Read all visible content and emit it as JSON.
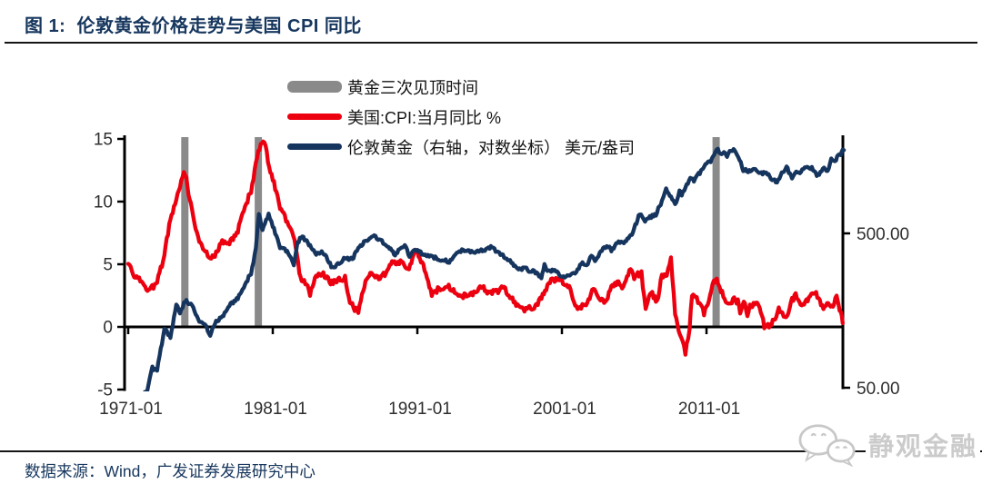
{
  "header": {
    "title": "图 1:  伦敦黄金价格走势与美国 CPI 同比"
  },
  "footer": {
    "source": "数据来源：Wind，广发证券发展研究中心",
    "watermark": "静观金融"
  },
  "chart_data": {
    "type": "line",
    "title": "伦敦黄金价格走势与美国 CPI 同比",
    "grid": false,
    "legend_position": "top-center",
    "legend": [
      {
        "label": "黄金三次见顶时间",
        "swatch": "bar",
        "color": "#8a8a8a"
      },
      {
        "label": "美国:CPI:当月同比 %",
        "swatch": "line",
        "color": "#ec000f"
      },
      {
        "label": "伦敦黄金（右轴，对数坐标） 美元/盎司",
        "swatch": "line",
        "color": "#16355e"
      }
    ],
    "x_axis": {
      "ticks": [
        {
          "year": 1971,
          "label": "1971-01"
        },
        {
          "year": 1981,
          "label": "1981-01"
        },
        {
          "year": 1991,
          "label": "1991-01"
        },
        {
          "year": 2001,
          "label": "2001-01"
        },
        {
          "year": 2011,
          "label": "2011-01"
        }
      ],
      "range_years": [
        1971.0,
        2020.5
      ]
    },
    "left_axis": {
      "name": "美国CPI当月同比 %",
      "range": [
        -5,
        15
      ],
      "ticks": [
        {
          "value": 15,
          "label": "15"
        },
        {
          "value": 10,
          "label": "10"
        },
        {
          "value": 5,
          "label": "5"
        },
        {
          "value": 0,
          "label": "0"
        },
        {
          "value": -5,
          "label": "-5"
        }
      ]
    },
    "right_axis": {
      "name": "伦敦黄金 美元/盎司",
      "scale": "log",
      "ticks": [
        {
          "value": 500,
          "label": "500.00"
        },
        {
          "value": 50,
          "label": "50.00"
        }
      ]
    },
    "highlight_bars": {
      "name": "黄金三次见顶时间",
      "color": "#8a8a8a",
      "dates": [
        "1974-12",
        "1980-01",
        "2011-09"
      ]
    },
    "series": [
      {
        "name": "美国:CPI:当月同比 %",
        "axis": "left",
        "unit": "%",
        "color": "#ec000f",
        "points": [
          [
            1971.0,
            5.2
          ],
          [
            1971.33,
            4.2
          ],
          [
            1971.67,
            4.1
          ],
          [
            1972.0,
            3.3
          ],
          [
            1972.5,
            2.9
          ],
          [
            1973.0,
            3.6
          ],
          [
            1973.5,
            5.7
          ],
          [
            1973.92,
            8.7
          ],
          [
            1974.33,
            10.1
          ],
          [
            1974.75,
            12.1
          ],
          [
            1974.95,
            12.3
          ],
          [
            1975.25,
            10.2
          ],
          [
            1975.75,
            7.4
          ],
          [
            1976.17,
            6.1
          ],
          [
            1976.75,
            5.5
          ],
          [
            1977.08,
            5.9
          ],
          [
            1977.5,
            6.8
          ],
          [
            1978.0,
            6.8
          ],
          [
            1978.5,
            7.4
          ],
          [
            1979.0,
            9.3
          ],
          [
            1979.5,
            10.9
          ],
          [
            1980.0,
            13.9
          ],
          [
            1980.25,
            14.8
          ],
          [
            1980.5,
            14.4
          ],
          [
            1980.75,
            12.8
          ],
          [
            1981.0,
            11.8
          ],
          [
            1981.5,
            9.6
          ],
          [
            1982.0,
            8.4
          ],
          [
            1982.5,
            7.1
          ],
          [
            1982.92,
            3.8
          ],
          [
            1983.25,
            3.6
          ],
          [
            1983.58,
            2.6
          ],
          [
            1984.0,
            4.2
          ],
          [
            1984.5,
            4.2
          ],
          [
            1985.0,
            3.5
          ],
          [
            1985.5,
            3.8
          ],
          [
            1986.0,
            3.9
          ],
          [
            1986.25,
            2.3
          ],
          [
            1986.58,
            1.6
          ],
          [
            1986.92,
            1.1
          ],
          [
            1987.25,
            3.0
          ],
          [
            1987.75,
            4.5
          ],
          [
            1988.25,
            3.9
          ],
          [
            1988.75,
            4.2
          ],
          [
            1989.17,
            5.0
          ],
          [
            1989.5,
            5.2
          ],
          [
            1990.0,
            5.2
          ],
          [
            1990.42,
            4.4
          ],
          [
            1990.83,
            6.3
          ],
          [
            1991.17,
            5.3
          ],
          [
            1991.5,
            4.7
          ],
          [
            1992.0,
            2.6
          ],
          [
            1992.5,
            3.1
          ],
          [
            1993.0,
            3.3
          ],
          [
            1993.5,
            3.0
          ],
          [
            1994.0,
            2.5
          ],
          [
            1994.5,
            2.5
          ],
          [
            1995.0,
            2.8
          ],
          [
            1995.42,
            3.2
          ],
          [
            1996.0,
            2.7
          ],
          [
            1996.5,
            2.8
          ],
          [
            1996.92,
            3.3
          ],
          [
            1997.33,
            2.5
          ],
          [
            1997.83,
            1.8
          ],
          [
            1998.25,
            1.4
          ],
          [
            1998.75,
            1.5
          ],
          [
            1999.25,
            1.7
          ],
          [
            1999.75,
            2.6
          ],
          [
            2000.25,
            3.8
          ],
          [
            2000.5,
            3.7
          ],
          [
            2001.0,
            3.7
          ],
          [
            2001.5,
            3.2
          ],
          [
            2001.92,
            1.6
          ],
          [
            2002.25,
            1.5
          ],
          [
            2002.75,
            2.0
          ],
          [
            2003.17,
            3.0
          ],
          [
            2003.58,
            2.2
          ],
          [
            2004.0,
            1.9
          ],
          [
            2004.42,
            3.1
          ],
          [
            2004.83,
            3.5
          ],
          [
            2005.25,
            3.1
          ],
          [
            2005.75,
            4.7
          ],
          [
            2006.0,
            4.0
          ],
          [
            2006.5,
            4.3
          ],
          [
            2006.79,
            1.3
          ],
          [
            2007.17,
            2.8
          ],
          [
            2007.58,
            2.0
          ],
          [
            2007.92,
            4.1
          ],
          [
            2008.25,
            4.0
          ],
          [
            2008.54,
            5.6
          ],
          [
            2008.83,
            1.1
          ],
          [
            2009.0,
            0.0
          ],
          [
            2009.25,
            -0.7
          ],
          [
            2009.54,
            -2.1
          ],
          [
            2009.83,
            -0.2
          ],
          [
            2010.0,
            2.6
          ],
          [
            2010.33,
            2.2
          ],
          [
            2010.83,
            1.1
          ],
          [
            2011.17,
            2.1
          ],
          [
            2011.5,
            3.6
          ],
          [
            2011.71,
            3.9
          ],
          [
            2012.0,
            2.9
          ],
          [
            2012.5,
            1.7
          ],
          [
            2012.83,
            2.2
          ],
          [
            2013.17,
            2.0
          ],
          [
            2013.33,
            1.1
          ],
          [
            2013.58,
            2.0
          ],
          [
            2013.83,
            1.0
          ],
          [
            2014.0,
            1.6
          ],
          [
            2014.42,
            2.1
          ],
          [
            2014.92,
            0.8
          ],
          [
            2015.0,
            -0.1
          ],
          [
            2015.5,
            0.2
          ],
          [
            2016.0,
            1.4
          ],
          [
            2016.5,
            0.8
          ],
          [
            2016.92,
            2.1
          ],
          [
            2017.17,
            2.7
          ],
          [
            2017.5,
            1.6
          ],
          [
            2018.0,
            2.1
          ],
          [
            2018.5,
            2.9
          ],
          [
            2018.92,
            1.9
          ],
          [
            2019.17,
            1.5
          ],
          [
            2019.42,
            1.8
          ],
          [
            2019.83,
            1.8
          ],
          [
            2020.0,
            2.5
          ],
          [
            2020.21,
            1.5
          ],
          [
            2020.42,
            0.3
          ]
        ]
      },
      {
        "name": "伦敦黄金（右轴，对数坐标） 美元/盎司",
        "axis": "right",
        "unit": "美元/盎司",
        "color": "#16355e",
        "points": [
          [
            1971.0,
            37.9
          ],
          [
            1971.5,
            40.1
          ],
          [
            1971.92,
            43.5
          ],
          [
            1972.33,
            49.0
          ],
          [
            1972.67,
            67.0
          ],
          [
            1973.0,
            65.1
          ],
          [
            1973.5,
            120.2
          ],
          [
            1973.92,
            106.7
          ],
          [
            1974.33,
            172.2
          ],
          [
            1974.58,
            154.0
          ],
          [
            1974.95,
            183.9
          ],
          [
            1975.17,
            178.2
          ],
          [
            1975.5,
            166.3
          ],
          [
            1975.75,
            143.0
          ],
          [
            1976.0,
            131.5
          ],
          [
            1976.33,
            127.0
          ],
          [
            1976.67,
            109.9
          ],
          [
            1977.0,
            132.3
          ],
          [
            1977.5,
            143.4
          ],
          [
            1978.0,
            173.2
          ],
          [
            1978.42,
            183.1
          ],
          [
            1978.83,
            206.0
          ],
          [
            1979.17,
            242.0
          ],
          [
            1979.5,
            277.5
          ],
          [
            1979.83,
            392.0
          ],
          [
            1980.04,
            675.3
          ],
          [
            1980.29,
            517.4
          ],
          [
            1980.71,
            673.6
          ],
          [
            1981.0,
            557.4
          ],
          [
            1981.5,
            409.3
          ],
          [
            1982.0,
            384.4
          ],
          [
            1982.46,
            315.0
          ],
          [
            1982.71,
            435.8
          ],
          [
            1983.04,
            481.3
          ],
          [
            1983.5,
            422.7
          ],
          [
            1984.0,
            370.9
          ],
          [
            1984.46,
            377.7
          ],
          [
            1985.13,
            299.1
          ],
          [
            1985.5,
            317.2
          ],
          [
            1986.0,
            345.4
          ],
          [
            1986.5,
            342.6
          ],
          [
            1987.0,
            408.3
          ],
          [
            1987.46,
            451.0
          ],
          [
            1987.92,
            487.0
          ],
          [
            1988.46,
            451.3
          ],
          [
            1989.0,
            404.0
          ],
          [
            1989.46,
            367.6
          ],
          [
            1989.92,
            409.4
          ],
          [
            1990.13,
            416.8
          ],
          [
            1990.46,
            352.3
          ],
          [
            1990.63,
            382.8
          ],
          [
            1991.0,
            383.6
          ],
          [
            1991.46,
            366.3
          ],
          [
            1992.0,
            354.5
          ],
          [
            1992.63,
            340.0
          ],
          [
            1993.21,
            329.0
          ],
          [
            1993.63,
            372.0
          ],
          [
            1994.0,
            386.9
          ],
          [
            1994.5,
            385.5
          ],
          [
            1995.0,
            378.6
          ],
          [
            1995.5,
            387.6
          ],
          [
            1996.08,
            404.8
          ],
          [
            1996.5,
            385.3
          ],
          [
            1997.0,
            354.1
          ],
          [
            1997.5,
            324.1
          ],
          [
            1998.0,
            289.2
          ],
          [
            1998.38,
            301.0
          ],
          [
            1998.71,
            288.0
          ],
          [
            1999.0,
            287.1
          ],
          [
            1999.58,
            256.1
          ],
          [
            1999.79,
            310.7
          ],
          [
            2000.0,
            284.3
          ],
          [
            2000.5,
            285.7
          ],
          [
            2001.0,
            265.5
          ],
          [
            2001.29,
            260.5
          ],
          [
            2001.71,
            272.0
          ],
          [
            2002.0,
            281.5
          ],
          [
            2002.42,
            326.6
          ],
          [
            2002.71,
            310.3
          ],
          [
            2003.04,
            356.9
          ],
          [
            2003.29,
            328.2
          ],
          [
            2003.92,
            407.6
          ],
          [
            2004.29,
            403.0
          ],
          [
            2004.42,
            384.0
          ],
          [
            2004.92,
            442.1
          ],
          [
            2005.29,
            429.2
          ],
          [
            2005.92,
            510.1
          ],
          [
            2006.38,
            675.4
          ],
          [
            2006.75,
            585.8
          ],
          [
            2007.0,
            631.2
          ],
          [
            2007.5,
            665.3
          ],
          [
            2007.92,
            803.2
          ],
          [
            2008.21,
            968.4
          ],
          [
            2008.63,
            839.0
          ],
          [
            2008.83,
            760.9
          ],
          [
            2009.13,
            943.2
          ],
          [
            2009.29,
            890.2
          ],
          [
            2009.88,
            1134.7
          ],
          [
            2010.13,
            1095.4
          ],
          [
            2010.46,
            1205.4
          ],
          [
            2010.92,
            1390.6
          ],
          [
            2011.29,
            1473.8
          ],
          [
            2011.71,
            1771.9
          ],
          [
            2011.96,
            1652.3
          ],
          [
            2012.29,
            1650.0
          ],
          [
            2012.42,
            1598.8
          ],
          [
            2012.79,
            1747.0
          ],
          [
            2013.04,
            1670.9
          ],
          [
            2013.29,
            1485.0
          ],
          [
            2013.54,
            1286.7
          ],
          [
            2013.88,
            1275.9
          ],
          [
            2014.13,
            1299.6
          ],
          [
            2014.46,
            1288.7
          ],
          [
            2014.88,
            1200.6
          ],
          [
            2015.04,
            1250.8
          ],
          [
            2015.54,
            1130.0
          ],
          [
            2015.88,
            1068.3
          ],
          [
            2016.21,
            1246.0
          ],
          [
            2016.54,
            1336.7
          ],
          [
            2016.92,
            1151.9
          ],
          [
            2017.21,
            1234.2
          ],
          [
            2017.54,
            1236.8
          ],
          [
            2017.71,
            1314.1
          ],
          [
            2018.04,
            1331.3
          ],
          [
            2018.29,
            1334.8
          ],
          [
            2018.63,
            1201.7
          ],
          [
            2018.96,
            1250.4
          ],
          [
            2019.13,
            1320.1
          ],
          [
            2019.38,
            1283.0
          ],
          [
            2019.63,
            1500.4
          ],
          [
            2019.88,
            1479.1
          ],
          [
            2020.04,
            1560.7
          ],
          [
            2020.21,
            1593.8
          ],
          [
            2020.42,
            1715.7
          ],
          [
            2020.5,
            1732.0
          ]
        ]
      }
    ]
  }
}
